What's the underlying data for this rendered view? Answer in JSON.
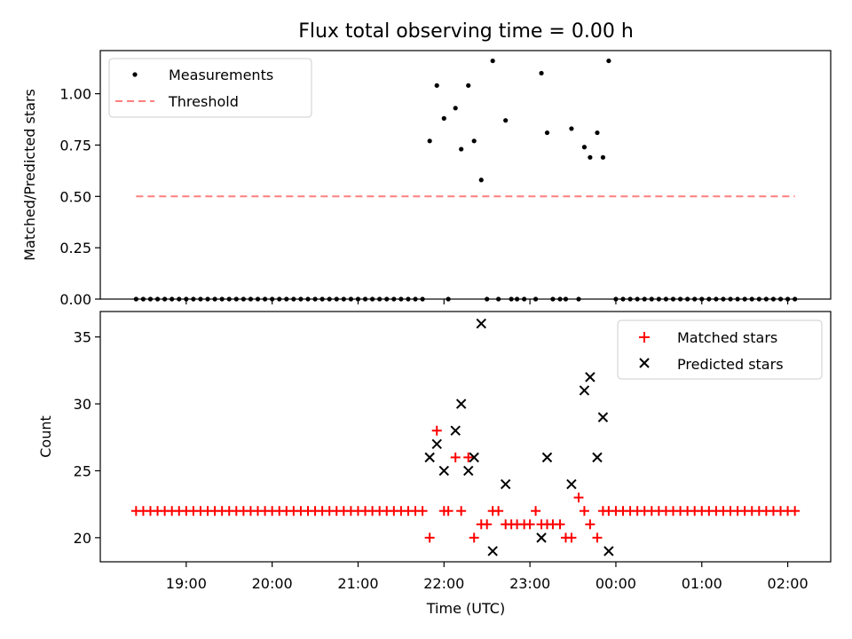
{
  "chart_data": [
    {
      "type": "scatter",
      "title": "Flux total observing time = 0.00 h",
      "ylabel": "Matched/Predicted stars",
      "xlabel": "",
      "ylim": [
        0,
        1.21
      ],
      "yticks": [
        0.0,
        0.25,
        0.5,
        0.75,
        1.0
      ],
      "ytick_labels": [
        "0.00",
        "0.25",
        "0.50",
        "0.75",
        "1.00"
      ],
      "grid": false,
      "legend": {
        "placement": "upper-left",
        "entries": [
          {
            "label": "Measurements",
            "marker": "dot",
            "color": "#000000"
          },
          {
            "label": "Threshold",
            "marker": "dashed-line",
            "color": "#ff7f7f"
          }
        ]
      },
      "threshold": {
        "name": "Threshold",
        "value": 0.5,
        "x_range": [
          "18:25",
          "02:05"
        ],
        "color": "#ff7f7f"
      },
      "series": [
        {
          "name": "Measurements",
          "color": "#000000",
          "points": [
            [
              "18:25",
              0
            ],
            [
              "18:30",
              0
            ],
            [
              "18:35",
              0
            ],
            [
              "18:40",
              0
            ],
            [
              "18:45",
              0
            ],
            [
              "18:50",
              0
            ],
            [
              "18:55",
              0
            ],
            [
              "19:00",
              0
            ],
            [
              "19:05",
              0
            ],
            [
              "19:10",
              0
            ],
            [
              "19:15",
              0
            ],
            [
              "19:20",
              0
            ],
            [
              "19:25",
              0
            ],
            [
              "19:30",
              0
            ],
            [
              "19:35",
              0
            ],
            [
              "19:40",
              0
            ],
            [
              "19:45",
              0
            ],
            [
              "19:50",
              0
            ],
            [
              "19:55",
              0
            ],
            [
              "20:00",
              0
            ],
            [
              "20:05",
              0
            ],
            [
              "20:10",
              0
            ],
            [
              "20:15",
              0
            ],
            [
              "20:20",
              0
            ],
            [
              "20:25",
              0
            ],
            [
              "20:30",
              0
            ],
            [
              "20:35",
              0
            ],
            [
              "20:40",
              0
            ],
            [
              "20:45",
              0
            ],
            [
              "20:50",
              0
            ],
            [
              "20:55",
              0
            ],
            [
              "21:00",
              0
            ],
            [
              "21:05",
              0
            ],
            [
              "21:10",
              0
            ],
            [
              "21:15",
              0
            ],
            [
              "21:20",
              0
            ],
            [
              "21:25",
              0
            ],
            [
              "21:30",
              0
            ],
            [
              "21:35",
              0
            ],
            [
              "21:40",
              0
            ],
            [
              "21:45",
              0
            ],
            [
              "21:50",
              0.77
            ],
            [
              "21:55",
              1.04
            ],
            [
              "22:00",
              0.88
            ],
            [
              "22:03",
              0
            ],
            [
              "22:08",
              0.93
            ],
            [
              "22:12",
              0.73
            ],
            [
              "22:17",
              1.04
            ],
            [
              "22:21",
              0.77
            ],
            [
              "22:26",
              0.58
            ],
            [
              "22:30",
              0
            ],
            [
              "22:34",
              1.16
            ],
            [
              "22:38",
              0
            ],
            [
              "22:43",
              0.87
            ],
            [
              "22:47",
              0
            ],
            [
              "22:51",
              0
            ],
            [
              "22:56",
              0
            ],
            [
              "23:04",
              0
            ],
            [
              "23:08",
              1.1
            ],
            [
              "23:12",
              0.81
            ],
            [
              "23:16",
              0
            ],
            [
              "23:21",
              0
            ],
            [
              "23:25",
              0
            ],
            [
              "23:29",
              0.83
            ],
            [
              "23:34",
              0
            ],
            [
              "23:38",
              0.74
            ],
            [
              "23:42",
              0.69
            ],
            [
              "23:47",
              0.81
            ],
            [
              "23:51",
              0.69
            ],
            [
              "23:55",
              1.16
            ],
            [
              "00:00",
              0
            ],
            [
              "00:05",
              0
            ],
            [
              "00:10",
              0
            ],
            [
              "00:15",
              0
            ],
            [
              "00:20",
              0
            ],
            [
              "00:25",
              0
            ],
            [
              "00:30",
              0
            ],
            [
              "00:35",
              0
            ],
            [
              "00:40",
              0
            ],
            [
              "00:45",
              0
            ],
            [
              "00:50",
              0
            ],
            [
              "00:55",
              0
            ],
            [
              "01:00",
              0
            ],
            [
              "01:05",
              0
            ],
            [
              "01:10",
              0
            ],
            [
              "01:15",
              0
            ],
            [
              "01:20",
              0
            ],
            [
              "01:25",
              0
            ],
            [
              "01:30",
              0
            ],
            [
              "01:35",
              0
            ],
            [
              "01:40",
              0
            ],
            [
              "01:45",
              0
            ],
            [
              "01:50",
              0
            ],
            [
              "01:55",
              0
            ],
            [
              "02:00",
              0
            ],
            [
              "02:05",
              0
            ]
          ]
        }
      ]
    },
    {
      "type": "scatter",
      "title": "",
      "xlabel": "Time (UTC)",
      "ylabel": "Count",
      "ylim": [
        18.2,
        36.9
      ],
      "yticks": [
        20,
        25,
        30,
        35
      ],
      "ytick_labels": [
        "20",
        "25",
        "30",
        "35"
      ],
      "x_ticks": [
        "19:00",
        "20:00",
        "21:00",
        "22:00",
        "23:00",
        "00:00",
        "01:00",
        "02:00"
      ],
      "grid": false,
      "legend": {
        "placement": "upper-right",
        "entries": [
          {
            "label": "Matched stars",
            "marker": "plus",
            "color": "#ff0000"
          },
          {
            "label": "Predicted stars",
            "marker": "x",
            "color": "#000000"
          }
        ]
      },
      "series": [
        {
          "name": "Matched stars",
          "marker": "plus",
          "color": "#ff0000",
          "points": [
            [
              "18:25",
              22
            ],
            [
              "18:30",
              22
            ],
            [
              "18:35",
              22
            ],
            [
              "18:40",
              22
            ],
            [
              "18:45",
              22
            ],
            [
              "18:50",
              22
            ],
            [
              "18:55",
              22
            ],
            [
              "19:00",
              22
            ],
            [
              "19:05",
              22
            ],
            [
              "19:10",
              22
            ],
            [
              "19:15",
              22
            ],
            [
              "19:20",
              22
            ],
            [
              "19:25",
              22
            ],
            [
              "19:30",
              22
            ],
            [
              "19:35",
              22
            ],
            [
              "19:40",
              22
            ],
            [
              "19:45",
              22
            ],
            [
              "19:50",
              22
            ],
            [
              "19:55",
              22
            ],
            [
              "20:00",
              22
            ],
            [
              "20:05",
              22
            ],
            [
              "20:10",
              22
            ],
            [
              "20:15",
              22
            ],
            [
              "20:20",
              22
            ],
            [
              "20:25",
              22
            ],
            [
              "20:30",
              22
            ],
            [
              "20:35",
              22
            ],
            [
              "20:40",
              22
            ],
            [
              "20:45",
              22
            ],
            [
              "20:50",
              22
            ],
            [
              "20:55",
              22
            ],
            [
              "21:00",
              22
            ],
            [
              "21:05",
              22
            ],
            [
              "21:10",
              22
            ],
            [
              "21:15",
              22
            ],
            [
              "21:20",
              22
            ],
            [
              "21:25",
              22
            ],
            [
              "21:30",
              22
            ],
            [
              "21:35",
              22
            ],
            [
              "21:40",
              22
            ],
            [
              "21:45",
              22
            ],
            [
              "21:50",
              20
            ],
            [
              "21:55",
              28
            ],
            [
              "22:00",
              22
            ],
            [
              "22:03",
              22
            ],
            [
              "22:08",
              26
            ],
            [
              "22:12",
              22
            ],
            [
              "22:17",
              26
            ],
            [
              "22:21",
              20
            ],
            [
              "22:26",
              21
            ],
            [
              "22:30",
              21
            ],
            [
              "22:34",
              22
            ],
            [
              "22:38",
              22
            ],
            [
              "22:43",
              21
            ],
            [
              "22:47",
              21
            ],
            [
              "22:51",
              21
            ],
            [
              "22:56",
              21
            ],
            [
              "23:00",
              21
            ],
            [
              "23:04",
              22
            ],
            [
              "23:08",
              21
            ],
            [
              "23:12",
              21
            ],
            [
              "23:16",
              21
            ],
            [
              "23:21",
              21
            ],
            [
              "23:25",
              20
            ],
            [
              "23:29",
              20
            ],
            [
              "23:34",
              23
            ],
            [
              "23:38",
              22
            ],
            [
              "23:42",
              21
            ],
            [
              "23:47",
              20
            ],
            [
              "23:51",
              22
            ],
            [
              "23:55",
              22
            ],
            [
              "00:00",
              22
            ],
            [
              "00:05",
              22
            ],
            [
              "00:10",
              22
            ],
            [
              "00:15",
              22
            ],
            [
              "00:20",
              22
            ],
            [
              "00:25",
              22
            ],
            [
              "00:30",
              22
            ],
            [
              "00:35",
              22
            ],
            [
              "00:40",
              22
            ],
            [
              "00:45",
              22
            ],
            [
              "00:50",
              22
            ],
            [
              "00:55",
              22
            ],
            [
              "01:00",
              22
            ],
            [
              "01:05",
              22
            ],
            [
              "01:10",
              22
            ],
            [
              "01:15",
              22
            ],
            [
              "01:20",
              22
            ],
            [
              "01:25",
              22
            ],
            [
              "01:30",
              22
            ],
            [
              "01:35",
              22
            ],
            [
              "01:40",
              22
            ],
            [
              "01:45",
              22
            ],
            [
              "01:50",
              22
            ],
            [
              "01:55",
              22
            ],
            [
              "02:00",
              22
            ],
            [
              "02:05",
              22
            ]
          ]
        },
        {
          "name": "Predicted stars",
          "marker": "x",
          "color": "#000000",
          "points": [
            [
              "21:50",
              26
            ],
            [
              "21:55",
              27
            ],
            [
              "22:00",
              25
            ],
            [
              "22:08",
              28
            ],
            [
              "22:12",
              30
            ],
            [
              "22:17",
              25
            ],
            [
              "22:21",
              26
            ],
            [
              "22:26",
              36
            ],
            [
              "22:34",
              19
            ],
            [
              "22:43",
              24
            ],
            [
              "23:08",
              20
            ],
            [
              "23:12",
              26
            ],
            [
              "23:29",
              24
            ],
            [
              "23:38",
              31
            ],
            [
              "23:42",
              32
            ],
            [
              "23:47",
              26
            ],
            [
              "23:51",
              29
            ],
            [
              "23:55",
              19
            ]
          ]
        }
      ]
    }
  ]
}
